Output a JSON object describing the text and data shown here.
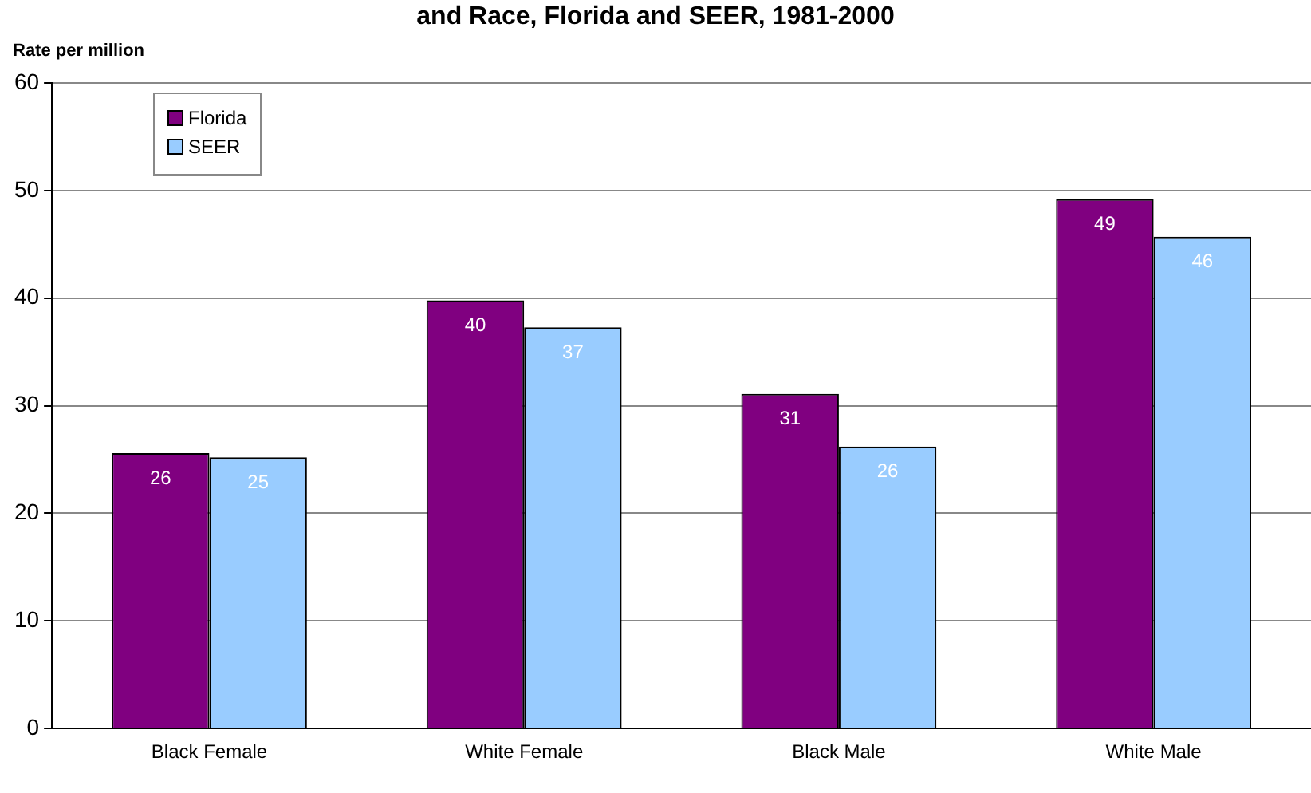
{
  "chart_data": {
    "type": "bar",
    "title": "and Race, Florida and SEER, 1981-2000",
    "ylabel": "Rate per million",
    "categories": [
      "Black Female",
      "White Female",
      "Black Male",
      "White Male"
    ],
    "series": [
      {
        "name": "Florida",
        "color": "#800080",
        "values": [
          25.6,
          39.8,
          31.1,
          49.2
        ],
        "value_labels": [
          "26",
          "40",
          "31",
          "49"
        ]
      },
      {
        "name": "SEER",
        "color": "#99ccff",
        "values": [
          25.2,
          37.3,
          26.2,
          45.7
        ],
        "value_labels": [
          "25",
          "37",
          "26",
          "46"
        ]
      }
    ],
    "ylim": [
      0,
      60
    ],
    "yticks": [
      0,
      10,
      20,
      30,
      40,
      50,
      60
    ],
    "grid": "y",
    "legend": "top left"
  }
}
